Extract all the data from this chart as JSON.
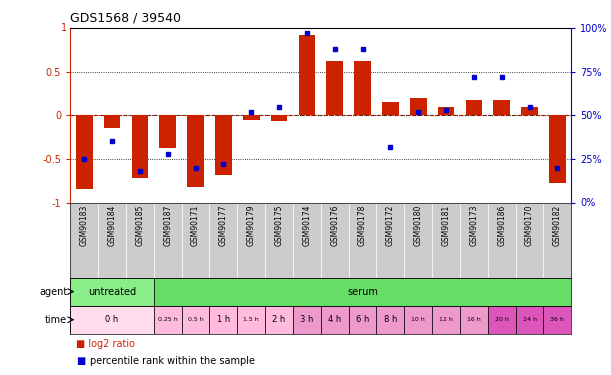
{
  "title": "GDS1568 / 39540",
  "samples": [
    "GSM90183",
    "GSM90184",
    "GSM90185",
    "GSM90187",
    "GSM90171",
    "GSM90177",
    "GSM90179",
    "GSM90175",
    "GSM90174",
    "GSM90176",
    "GSM90178",
    "GSM90172",
    "GSM90180",
    "GSM90181",
    "GSM90173",
    "GSM90186",
    "GSM90170",
    "GSM90182"
  ],
  "log2_ratio": [
    -0.85,
    -0.15,
    -0.72,
    -0.38,
    -0.82,
    -0.68,
    -0.05,
    -0.07,
    0.92,
    0.62,
    0.62,
    0.15,
    0.2,
    0.1,
    0.17,
    0.18,
    0.1,
    -0.78
  ],
  "percentile": [
    25,
    35,
    18,
    28,
    20,
    22,
    52,
    55,
    97,
    88,
    88,
    32,
    52,
    53,
    72,
    72,
    55,
    20
  ],
  "bar_color": "#cc2200",
  "dot_color": "#0000cc",
  "agent_spans": [
    {
      "label": "untreated",
      "start": 0,
      "end": 3,
      "color": "#88ee88"
    },
    {
      "label": "serum",
      "start": 3,
      "end": 18,
      "color": "#66dd66"
    }
  ],
  "time_spans": [
    {
      "label": "0 h",
      "start": 0,
      "end": 3,
      "color": "#ffddee"
    },
    {
      "label": "0.25 h",
      "start": 3,
      "end": 4,
      "color": "#ffbbdd"
    },
    {
      "label": "0.5 h",
      "start": 4,
      "end": 5,
      "color": "#ffbbdd"
    },
    {
      "label": "1 h",
      "start": 5,
      "end": 6,
      "color": "#ffbbdd"
    },
    {
      "label": "1.5 h",
      "start": 6,
      "end": 7,
      "color": "#ffbbdd"
    },
    {
      "label": "2 h",
      "start": 7,
      "end": 8,
      "color": "#ffbbdd"
    },
    {
      "label": "3 h",
      "start": 8,
      "end": 9,
      "color": "#ee99cc"
    },
    {
      "label": "4 h",
      "start": 9,
      "end": 10,
      "color": "#ee99cc"
    },
    {
      "label": "6 h",
      "start": 10,
      "end": 11,
      "color": "#ee99cc"
    },
    {
      "label": "8 h",
      "start": 11,
      "end": 12,
      "color": "#ee99cc"
    },
    {
      "label": "10 h",
      "start": 12,
      "end": 13,
      "color": "#ee99cc"
    },
    {
      "label": "12 h",
      "start": 13,
      "end": 14,
      "color": "#ee99cc"
    },
    {
      "label": "16 h",
      "start": 14,
      "end": 15,
      "color": "#ee99cc"
    },
    {
      "label": "20 h",
      "start": 15,
      "end": 16,
      "color": "#dd55bb"
    },
    {
      "label": "24 h",
      "start": 16,
      "end": 17,
      "color": "#dd55bb"
    },
    {
      "label": "36 h",
      "start": 17,
      "end": 18,
      "color": "#dd55bb"
    }
  ],
  "legend_log2": "log2 ratio",
  "legend_pct": "percentile rank within the sample",
  "bg_color": "#ffffff",
  "sample_bg": "#cccccc"
}
